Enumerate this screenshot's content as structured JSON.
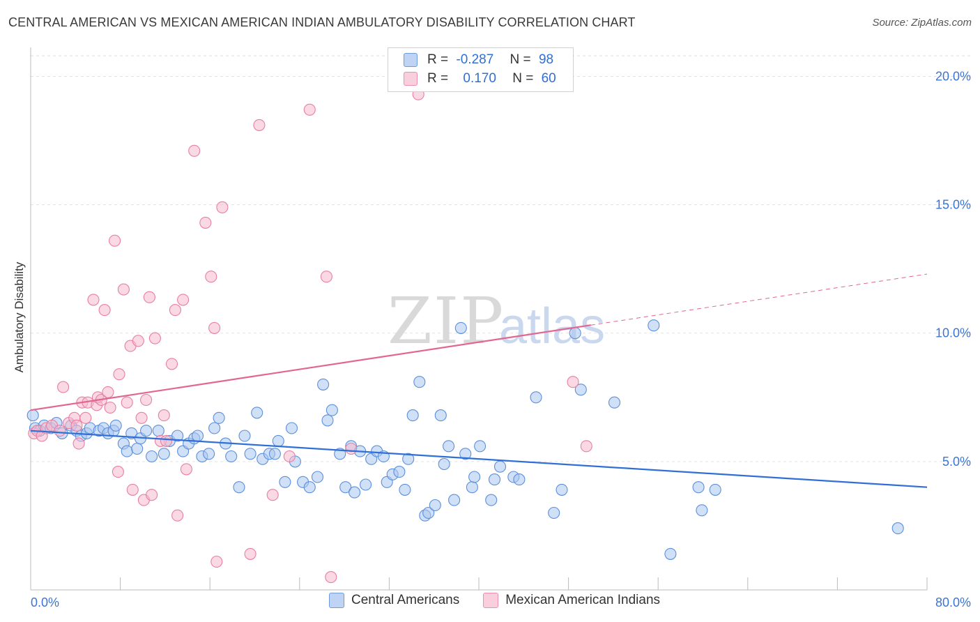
{
  "header": {
    "title": "CENTRAL AMERICAN VS MEXICAN AMERICAN INDIAN AMBULATORY DISABILITY CORRELATION CHART",
    "source": "Source: ZipAtlas.com"
  },
  "watermark": {
    "zip": "ZIP",
    "atlas": "atlas"
  },
  "legend": {
    "r_label": "R =",
    "n_label": "N =",
    "entries": [
      {
        "r": "-0.287",
        "n": "98",
        "color": "#8fb4ea"
      },
      {
        "r": "0.170",
        "n": "60",
        "color": "#f2a6bf"
      }
    ]
  },
  "chart_data": {
    "type": "scatter",
    "title": "CENTRAL AMERICAN VS MEXICAN AMERICAN INDIAN AMBULATORY DISABILITY CORRELATION CHART",
    "xlabel": "",
    "ylabel": "Ambulatory Disability",
    "xlim": [
      0,
      80
    ],
    "ylim": [
      0,
      20.8
    ],
    "x_tick_labels": [
      "0.0%",
      "80.0%"
    ],
    "y_ticks": [
      5,
      10,
      15,
      20
    ],
    "y_tick_labels": [
      "5.0%",
      "10.0%",
      "15.0%",
      "20.0%"
    ],
    "grid": true,
    "legend_position": "top-center",
    "series": [
      {
        "name": "Central Americans",
        "color": "#5b8fdc",
        "fill": "#a9c6f0",
        "trend": {
          "x": [
            0,
            80
          ],
          "y": [
            6.2,
            4.0
          ],
          "dashed_from": null
        },
        "points": [
          [
            0.2,
            6.8
          ],
          [
            0.4,
            6.3
          ],
          [
            0.8,
            6.2
          ],
          [
            1.2,
            6.4
          ],
          [
            1.8,
            6.3
          ],
          [
            2.3,
            6.5
          ],
          [
            2.8,
            6.1
          ],
          [
            3.6,
            6.4
          ],
          [
            4.1,
            6.2
          ],
          [
            4.5,
            6.0
          ],
          [
            5.0,
            6.1
          ],
          [
            5.3,
            6.3
          ],
          [
            6.1,
            6.2
          ],
          [
            6.5,
            6.3
          ],
          [
            6.9,
            6.1
          ],
          [
            7.4,
            6.2
          ],
          [
            7.6,
            6.4
          ],
          [
            8.3,
            5.7
          ],
          [
            8.6,
            5.4
          ],
          [
            9.0,
            6.1
          ],
          [
            9.5,
            5.5
          ],
          [
            9.8,
            5.9
          ],
          [
            10.3,
            6.2
          ],
          [
            10.8,
            5.2
          ],
          [
            11.4,
            6.2
          ],
          [
            11.9,
            5.3
          ],
          [
            12.4,
            5.8
          ],
          [
            13.1,
            6.0
          ],
          [
            13.6,
            5.4
          ],
          [
            14.1,
            5.7
          ],
          [
            14.6,
            5.9
          ],
          [
            14.9,
            6.0
          ],
          [
            15.3,
            5.2
          ],
          [
            15.9,
            5.3
          ],
          [
            16.4,
            6.3
          ],
          [
            16.8,
            6.7
          ],
          [
            17.4,
            5.7
          ],
          [
            17.9,
            5.2
          ],
          [
            18.6,
            4.0
          ],
          [
            19.1,
            6.0
          ],
          [
            19.6,
            5.3
          ],
          [
            20.2,
            6.9
          ],
          [
            20.7,
            5.1
          ],
          [
            21.3,
            5.3
          ],
          [
            21.8,
            5.3
          ],
          [
            22.1,
            5.8
          ],
          [
            22.7,
            4.2
          ],
          [
            23.3,
            6.3
          ],
          [
            23.6,
            5.0
          ],
          [
            24.3,
            4.2
          ],
          [
            24.9,
            4.0
          ],
          [
            25.6,
            4.4
          ],
          [
            26.1,
            8.0
          ],
          [
            26.5,
            6.6
          ],
          [
            26.9,
            7.0
          ],
          [
            27.6,
            5.3
          ],
          [
            28.1,
            4.0
          ],
          [
            28.6,
            5.6
          ],
          [
            28.9,
            3.8
          ],
          [
            29.4,
            5.4
          ],
          [
            29.9,
            4.1
          ],
          [
            30.4,
            5.1
          ],
          [
            30.9,
            5.4
          ],
          [
            31.5,
            5.2
          ],
          [
            31.8,
            4.2
          ],
          [
            32.3,
            4.5
          ],
          [
            32.9,
            4.6
          ],
          [
            33.4,
            3.9
          ],
          [
            33.7,
            5.1
          ],
          [
            34.1,
            6.8
          ],
          [
            34.7,
            8.1
          ],
          [
            35.2,
            2.9
          ],
          [
            35.5,
            3.0
          ],
          [
            36.1,
            3.3
          ],
          [
            36.6,
            6.8
          ],
          [
            36.9,
            4.9
          ],
          [
            37.3,
            5.6
          ],
          [
            37.8,
            3.5
          ],
          [
            38.4,
            10.2
          ],
          [
            38.8,
            5.3
          ],
          [
            39.4,
            4.0
          ],
          [
            39.6,
            4.4
          ],
          [
            40.1,
            5.6
          ],
          [
            41.1,
            3.5
          ],
          [
            41.4,
            4.3
          ],
          [
            41.9,
            4.8
          ],
          [
            43.1,
            4.4
          ],
          [
            43.6,
            4.3
          ],
          [
            45.1,
            7.5
          ],
          [
            46.7,
            3.0
          ],
          [
            47.4,
            3.9
          ],
          [
            48.6,
            10.0
          ],
          [
            49.1,
            7.8
          ],
          [
            52.1,
            7.3
          ],
          [
            55.6,
            10.3
          ],
          [
            57.1,
            1.4
          ],
          [
            59.6,
            4.0
          ],
          [
            59.9,
            3.1
          ],
          [
            61.1,
            3.9
          ],
          [
            77.4,
            2.4
          ]
        ]
      },
      {
        "name": "Mexican American Indians",
        "color": "#e77fa3",
        "fill": "#f5b9cd",
        "trend": {
          "x": [
            0,
            80
          ],
          "y": [
            7.0,
            12.3
          ],
          "dashed_from": 50
        },
        "points": [
          [
            0.3,
            6.1
          ],
          [
            0.6,
            6.2
          ],
          [
            1.0,
            6.0
          ],
          [
            1.4,
            6.3
          ],
          [
            1.9,
            6.4
          ],
          [
            2.6,
            6.2
          ],
          [
            2.9,
            7.9
          ],
          [
            3.4,
            6.5
          ],
          [
            3.9,
            6.7
          ],
          [
            4.1,
            6.4
          ],
          [
            4.3,
            5.7
          ],
          [
            4.6,
            7.3
          ],
          [
            4.9,
            6.7
          ],
          [
            5.1,
            7.3
          ],
          [
            5.6,
            11.3
          ],
          [
            5.9,
            7.2
          ],
          [
            6.0,
            7.5
          ],
          [
            6.3,
            7.4
          ],
          [
            6.6,
            10.9
          ],
          [
            6.9,
            7.7
          ],
          [
            7.1,
            7.1
          ],
          [
            7.5,
            13.6
          ],
          [
            7.9,
            8.4
          ],
          [
            7.8,
            4.6
          ],
          [
            8.3,
            11.7
          ],
          [
            8.6,
            7.3
          ],
          [
            8.9,
            9.5
          ],
          [
            9.1,
            3.9
          ],
          [
            9.6,
            9.7
          ],
          [
            9.9,
            6.7
          ],
          [
            10.1,
            3.5
          ],
          [
            10.3,
            7.4
          ],
          [
            10.6,
            11.4
          ],
          [
            10.8,
            3.7
          ],
          [
            11.1,
            9.8
          ],
          [
            11.6,
            5.8
          ],
          [
            11.9,
            6.8
          ],
          [
            12.1,
            5.8
          ],
          [
            12.6,
            8.8
          ],
          [
            12.9,
            10.9
          ],
          [
            13.1,
            2.9
          ],
          [
            13.6,
            11.3
          ],
          [
            13.9,
            4.7
          ],
          [
            14.6,
            17.1
          ],
          [
            15.6,
            14.3
          ],
          [
            16.1,
            12.2
          ],
          [
            16.4,
            10.2
          ],
          [
            16.6,
            1.1
          ],
          [
            17.1,
            14.9
          ],
          [
            19.6,
            1.4
          ],
          [
            20.4,
            18.1
          ],
          [
            21.6,
            3.7
          ],
          [
            23.1,
            5.2
          ],
          [
            24.9,
            18.7
          ],
          [
            26.4,
            12.2
          ],
          [
            26.8,
            0.5
          ],
          [
            28.6,
            5.5
          ],
          [
            34.6,
            19.3
          ],
          [
            48.4,
            8.1
          ],
          [
            49.6,
            5.6
          ]
        ]
      }
    ]
  },
  "bottom_legend": {
    "items": [
      {
        "label": "Central Americans",
        "color": "#a9c6f0",
        "border": "#5b8fdc"
      },
      {
        "label": "Mexican American Indians",
        "color": "#f5b9cd",
        "border": "#e77fa3"
      }
    ]
  },
  "axis_text": {
    "x_min": "0.0%",
    "x_max": "80.0%"
  }
}
